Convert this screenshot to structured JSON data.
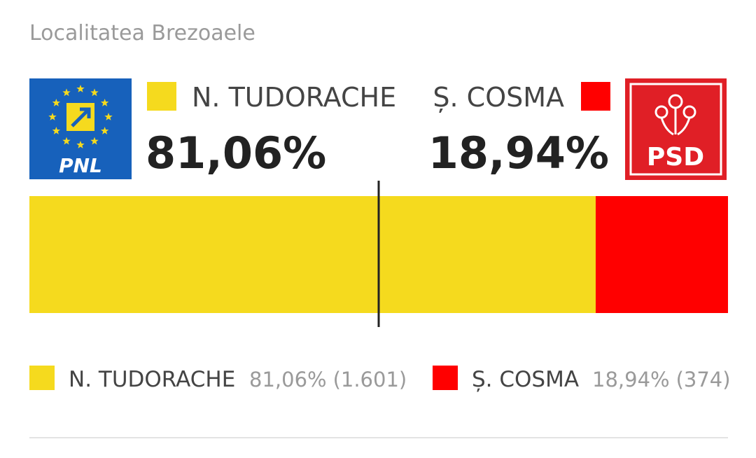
{
  "chart_data": {
    "type": "stacked-bar",
    "subtitle": "Localitatea Brezoaele",
    "logos": [
      "PNL",
      "PSD"
    ],
    "xlim": [
      0,
      100
    ],
    "marker": 50,
    "series": [
      {
        "name": "N. TUDORACHE",
        "color": "#f5da1e",
        "values": [
          81.06
        ],
        "value_labels": [
          "81,06%"
        ],
        "votes": [
          1601
        ],
        "vote_labels": [
          "(1.601)"
        ]
      },
      {
        "name": "Ș. COSMA",
        "color": "#ff0000",
        "values": [
          18.94
        ],
        "value_labels": [
          "18,94%"
        ],
        "votes": [
          374
        ],
        "vote_labels": [
          "(374)"
        ]
      }
    ]
  }
}
